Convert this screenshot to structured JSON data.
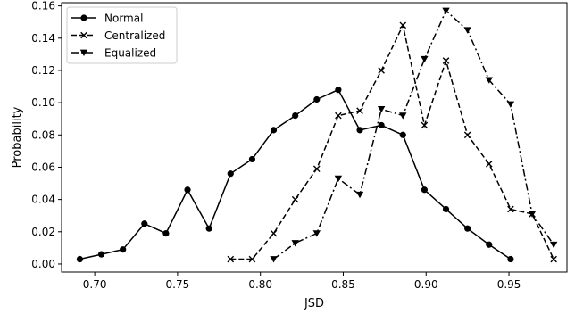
{
  "chart_data": {
    "type": "line",
    "title": "",
    "xlabel": "JSD",
    "ylabel": "Probability",
    "xlim": [
      0.68,
      0.985
    ],
    "ylim": [
      -0.005,
      0.162
    ],
    "xticks": [
      0.7,
      0.75,
      0.8,
      0.85,
      0.9,
      0.95
    ],
    "xtick_labels": [
      "0.70",
      "0.75",
      "0.80",
      "0.85",
      "0.90",
      "0.95"
    ],
    "yticks": [
      0.0,
      0.02,
      0.04,
      0.06,
      0.08,
      0.1,
      0.12,
      0.14,
      0.16
    ],
    "ytick_labels": [
      "0.00",
      "0.02",
      "0.04",
      "0.06",
      "0.08",
      "0.10",
      "0.12",
      "0.14",
      "0.16"
    ],
    "grid": false,
    "legend_position": "top-left",
    "series": [
      {
        "name": "Normal",
        "linestyle": "solid",
        "marker": "circle",
        "x": [
          0.691,
          0.704,
          0.717,
          0.73,
          0.743,
          0.756,
          0.769,
          0.782,
          0.795,
          0.808,
          0.821,
          0.834,
          0.847,
          0.86,
          0.873,
          0.886,
          0.899,
          0.912,
          0.925,
          0.938,
          0.951
        ],
        "y": [
          0.003,
          0.006,
          0.009,
          0.025,
          0.019,
          0.046,
          0.022,
          0.056,
          0.065,
          0.083,
          0.092,
          0.102,
          0.108,
          0.083,
          0.086,
          0.08,
          0.046,
          0.034,
          0.022,
          0.012,
          0.003
        ]
      },
      {
        "name": "Centralized",
        "linestyle": "dashed",
        "marker": "x",
        "x": [
          0.782,
          0.795,
          0.808,
          0.821,
          0.834,
          0.847,
          0.86,
          0.873,
          0.886,
          0.899,
          0.912,
          0.925,
          0.938,
          0.951,
          0.964,
          0.977
        ],
        "y": [
          0.003,
          0.003,
          0.019,
          0.04,
          0.059,
          0.092,
          0.095,
          0.12,
          0.148,
          0.086,
          0.126,
          0.08,
          0.062,
          0.034,
          0.031,
          0.003
        ]
      },
      {
        "name": "Equalized",
        "linestyle": "dashdot",
        "marker": "triangle-down",
        "x": [
          0.808,
          0.821,
          0.834,
          0.847,
          0.86,
          0.873,
          0.886,
          0.899,
          0.912,
          0.925,
          0.938,
          0.951,
          0.964,
          0.977
        ],
        "y": [
          0.003,
          0.013,
          0.019,
          0.053,
          0.043,
          0.096,
          0.092,
          0.127,
          0.157,
          0.145,
          0.114,
          0.099,
          0.031,
          0.012
        ]
      }
    ]
  }
}
